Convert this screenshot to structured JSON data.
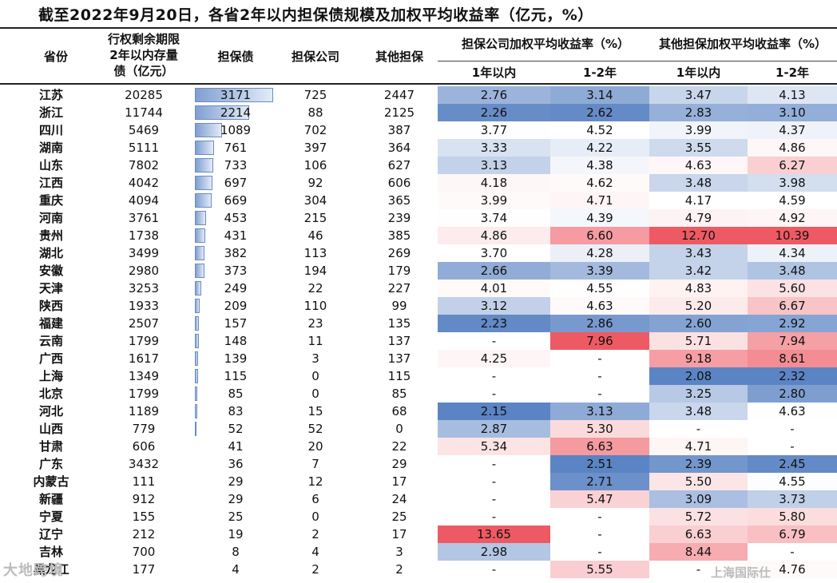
{
  "title": "截至2022年9月20日，各省2年以内担保债规模及加权平均收益率（亿元，%）",
  "headers": {
    "province": "省份",
    "remaining": [
      "行权剩余期限",
      "2年以内存量",
      "债（亿元）"
    ],
    "guarantee": "担保债",
    "company": "担保公司",
    "other": "其他担保",
    "group_company": "担保公司加权平均收益率（%）",
    "group_other": "其他担保加权平均收益率（%）",
    "sub_1y": "1年以内",
    "sub_12y": "1-2年"
  },
  "colors": {
    "blue_deep": "#5b84c4",
    "white": "#ffffff",
    "red_deep": "#ee5a63"
  },
  "rows": [
    {
      "province": "江苏",
      "remaining": "20285",
      "guarantee": "3171",
      "company": "725",
      "other": "2447",
      "c1": "2.76",
      "c2": "3.14",
      "o1": "3.47",
      "o2": "4.13"
    },
    {
      "province": "浙江",
      "remaining": "11744",
      "guarantee": "2214",
      "company": "88",
      "other": "2125",
      "c1": "2.26",
      "c2": "2.62",
      "o1": "2.83",
      "o2": "3.10"
    },
    {
      "province": "四川",
      "remaining": "5469",
      "guarantee": "1089",
      "company": "702",
      "other": "387",
      "c1": "3.77",
      "c2": "4.52",
      "o1": "3.99",
      "o2": "4.37"
    },
    {
      "province": "湖南",
      "remaining": "5111",
      "guarantee": "761",
      "company": "397",
      "other": "364",
      "c1": "3.33",
      "c2": "4.22",
      "o1": "3.55",
      "o2": "4.86"
    },
    {
      "province": "山东",
      "remaining": "7802",
      "guarantee": "733",
      "company": "106",
      "other": "627",
      "c1": "3.13",
      "c2": "4.38",
      "o1": "4.63",
      "o2": "6.27"
    },
    {
      "province": "江西",
      "remaining": "4042",
      "guarantee": "697",
      "company": "92",
      "other": "606",
      "c1": "4.18",
      "c2": "4.62",
      "o1": "3.48",
      "o2": "3.98"
    },
    {
      "province": "重庆",
      "remaining": "4094",
      "guarantee": "669",
      "company": "304",
      "other": "365",
      "c1": "3.99",
      "c2": "4.71",
      "o1": "4.17",
      "o2": "4.59"
    },
    {
      "province": "河南",
      "remaining": "3761",
      "guarantee": "453",
      "company": "215",
      "other": "239",
      "c1": "3.74",
      "c2": "4.39",
      "o1": "4.79",
      "o2": "4.92"
    },
    {
      "province": "贵州",
      "remaining": "1738",
      "guarantee": "431",
      "company": "46",
      "other": "385",
      "c1": "4.86",
      "c2": "6.60",
      "o1": "12.70",
      "o2": "10.39"
    },
    {
      "province": "湖北",
      "remaining": "3499",
      "guarantee": "382",
      "company": "113",
      "other": "269",
      "c1": "3.70",
      "c2": "4.28",
      "o1": "3.43",
      "o2": "4.34"
    },
    {
      "province": "安徽",
      "remaining": "2980",
      "guarantee": "373",
      "company": "194",
      "other": "179",
      "c1": "2.66",
      "c2": "3.39",
      "o1": "3.42",
      "o2": "3.48"
    },
    {
      "province": "天津",
      "remaining": "3253",
      "guarantee": "249",
      "company": "22",
      "other": "227",
      "c1": "4.01",
      "c2": "4.55",
      "o1": "4.83",
      "o2": "5.60"
    },
    {
      "province": "陕西",
      "remaining": "1933",
      "guarantee": "209",
      "company": "110",
      "other": "99",
      "c1": "3.12",
      "c2": "4.63",
      "o1": "5.20",
      "o2": "6.67"
    },
    {
      "province": "福建",
      "remaining": "2507",
      "guarantee": "157",
      "company": "23",
      "other": "135",
      "c1": "2.23",
      "c2": "2.86",
      "o1": "2.60",
      "o2": "2.92"
    },
    {
      "province": "云南",
      "remaining": "1799",
      "guarantee": "148",
      "company": "11",
      "other": "137",
      "c1": "-",
      "c2": "7.96",
      "o1": "5.71",
      "o2": "7.94"
    },
    {
      "province": "广西",
      "remaining": "1617",
      "guarantee": "139",
      "company": "3",
      "other": "137",
      "c1": "4.25",
      "c2": "-",
      "o1": "9.18",
      "o2": "8.61"
    },
    {
      "province": "上海",
      "remaining": "1349",
      "guarantee": "115",
      "company": "0",
      "other": "115",
      "c1": "-",
      "c2": "-",
      "o1": "2.08",
      "o2": "2.32"
    },
    {
      "province": "北京",
      "remaining": "1799",
      "guarantee": "85",
      "company": "0",
      "other": "85",
      "c1": "-",
      "c2": "-",
      "o1": "3.25",
      "o2": "2.80"
    },
    {
      "province": "河北",
      "remaining": "1189",
      "guarantee": "83",
      "company": "15",
      "other": "68",
      "c1": "2.15",
      "c2": "3.13",
      "o1": "3.48",
      "o2": "4.63"
    },
    {
      "province": "山西",
      "remaining": "779",
      "guarantee": "52",
      "company": "52",
      "other": "0",
      "c1": "2.87",
      "c2": "5.30",
      "o1": "-",
      "o2": "-"
    },
    {
      "province": "甘肃",
      "remaining": "606",
      "guarantee": "41",
      "company": "20",
      "other": "22",
      "c1": "5.34",
      "c2": "6.63",
      "o1": "4.71",
      "o2": "-"
    },
    {
      "province": "广东",
      "remaining": "3432",
      "guarantee": "36",
      "company": "7",
      "other": "29",
      "c1": "-",
      "c2": "2.51",
      "o1": "2.39",
      "o2": "2.45"
    },
    {
      "province": "内蒙古",
      "remaining": "111",
      "guarantee": "29",
      "company": "12",
      "other": "17",
      "c1": "-",
      "c2": "2.71",
      "o1": "5.50",
      "o2": "4.55"
    },
    {
      "province": "新疆",
      "remaining": "912",
      "guarantee": "29",
      "company": "6",
      "other": "24",
      "c1": "-",
      "c2": "5.47",
      "o1": "3.09",
      "o2": "3.73"
    },
    {
      "province": "宁夏",
      "remaining": "155",
      "guarantee": "25",
      "company": "0",
      "other": "25",
      "c1": "-",
      "c2": "-",
      "o1": "5.72",
      "o2": "5.80"
    },
    {
      "province": "辽宁",
      "remaining": "212",
      "guarantee": "19",
      "company": "2",
      "other": "17",
      "c1": "13.65",
      "c2": "-",
      "o1": "6.63",
      "o2": "6.79"
    },
    {
      "province": "吉林",
      "remaining": "700",
      "guarantee": "8",
      "company": "4",
      "other": "3",
      "c1": "2.98",
      "c2": "-",
      "o1": "8.44",
      "o2": "-"
    },
    {
      "province": "黑龙江",
      "remaining": "177",
      "guarantee": "4",
      "company": "2",
      "other": "2",
      "c1": "-",
      "c2": "5.55",
      "o1": "-",
      "o2": "4.76"
    }
  ],
  "watermarks": {
    "left": "大地跨境",
    "right": "上海国际仕"
  }
}
